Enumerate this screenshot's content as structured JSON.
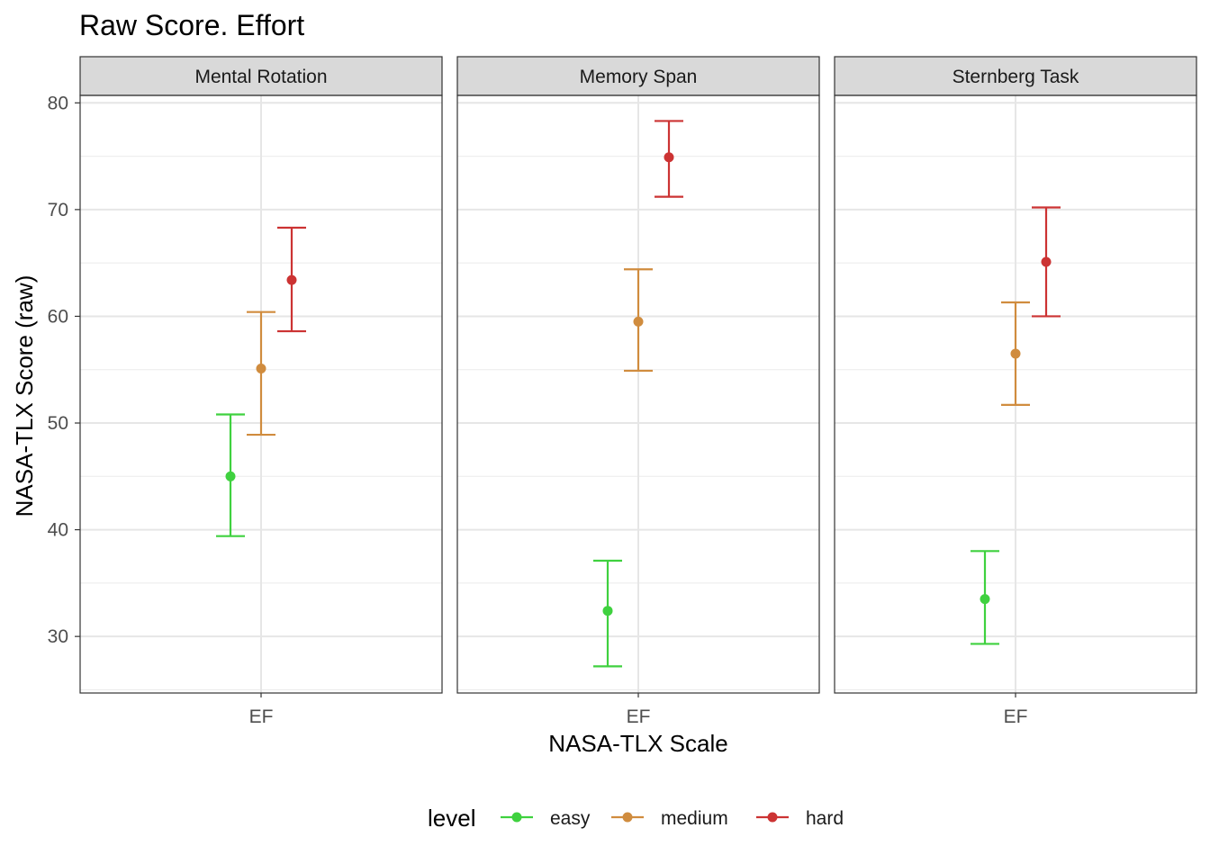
{
  "chart_data": {
    "type": "errorbar",
    "title": "Raw Score. Effort",
    "xlabel": "NASA-TLX Scale",
    "ylabel": "NASA-TLX Score (raw)",
    "ylim": [
      24.7,
      80.7
    ],
    "yticks": [
      30,
      40,
      50,
      60,
      70,
      80
    ],
    "x_category": "EF",
    "grid": true,
    "legend": {
      "title": "level",
      "position": "bottom",
      "entries": [
        "easy",
        "medium",
        "hard"
      ]
    },
    "colors": {
      "easy": "#3fd13f",
      "medium": "#d08c3e",
      "hard": "#cc3333"
    },
    "panels": [
      {
        "name": "Mental Rotation",
        "series": [
          {
            "level": "easy",
            "mean": 45.0,
            "lower": 39.4,
            "upper": 50.8
          },
          {
            "level": "medium",
            "mean": 55.1,
            "lower": 48.9,
            "upper": 60.4
          },
          {
            "level": "hard",
            "mean": 63.4,
            "lower": 58.6,
            "upper": 68.3
          }
        ]
      },
      {
        "name": "Memory Span",
        "series": [
          {
            "level": "easy",
            "mean": 32.4,
            "lower": 27.2,
            "upper": 37.1
          },
          {
            "level": "medium",
            "mean": 59.5,
            "lower": 54.9,
            "upper": 64.4
          },
          {
            "level": "hard",
            "mean": 74.9,
            "lower": 71.2,
            "upper": 78.3
          }
        ]
      },
      {
        "name": "Sternberg Task",
        "series": [
          {
            "level": "easy",
            "mean": 33.5,
            "lower": 29.3,
            "upper": 38.0
          },
          {
            "level": "medium",
            "mean": 56.5,
            "lower": 51.7,
            "upper": 61.3
          },
          {
            "level": "hard",
            "mean": 65.1,
            "lower": 60.0,
            "upper": 70.2
          }
        ]
      }
    ]
  }
}
